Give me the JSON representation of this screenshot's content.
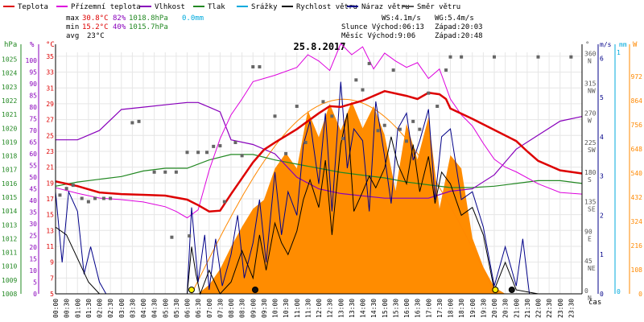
{
  "legend": [
    {
      "name": "Teplota",
      "color": "#dd0000"
    },
    {
      "name": "Přízemní teplota",
      "color": "#dd00dd"
    },
    {
      "name": "Vlhkost",
      "color": "#8800bb"
    },
    {
      "name": "Tlak",
      "color": "#228822"
    },
    {
      "name": "Srážky",
      "color": "#00aadd"
    },
    {
      "name": "Rychlost větru",
      "color": "#000000"
    },
    {
      "name": "Náraz větru",
      "color": "#000088"
    },
    {
      "name": "Směr větru",
      "color": "#555555"
    }
  ],
  "stats": {
    "max_label": "max",
    "max_temp": "30.8°C",
    "max_hum": "82%",
    "max_press": "1018.8hPa",
    "max_rain": "0.0mm",
    "min_label": "min",
    "min_temp": "15.2°C",
    "min_hum": "40%",
    "min_press": "1015.7hPa",
    "avg_label": "avg",
    "avg_temp": "23°C",
    "ws": "WS:4.1m/s",
    "wg": "WG:5.4m/s",
    "sun": "Slunce Východ:06:13",
    "sun_set": "Západ:20:03",
    "moon": "Měsíc Východ:9:06",
    "moon_set": "Západ:20:48"
  },
  "axis_units": {
    "hpa": "hPa",
    "pct": "%",
    "degc": "°C",
    "deg": "°",
    "ms": "m/s",
    "mm": "mm",
    "w": "W",
    "cas": "čas"
  },
  "colors": {
    "temp": "#dd0000",
    "ground": "#dd00dd",
    "hum": "#8800bb",
    "press": "#228822",
    "rain": "#00aadd",
    "wind": "#000000",
    "gust": "#000088",
    "dir": "#666666",
    "solar": "#ff8800",
    "solar_fill": "#ff8c00",
    "grid": "#e6e6e6"
  },
  "chart_data": {
    "type": "line",
    "title": "25.8.2017",
    "x_labels": [
      "00:00",
      "00:30",
      "01:00",
      "01:30",
      "02:00",
      "02:30",
      "03:00",
      "03:30",
      "04:00",
      "04:30",
      "05:00",
      "05:30",
      "06:00",
      "06:30",
      "07:00",
      "07:30",
      "08:00",
      "08:30",
      "09:00",
      "09:30",
      "10:00",
      "10:30",
      "11:00",
      "11:30",
      "12:00",
      "12:30",
      "13:00",
      "13:30",
      "14:00",
      "14:30",
      "15:00",
      "15:30",
      "16:00",
      "16:30",
      "17:00",
      "17:30",
      "18:00",
      "18:30",
      "19:00",
      "19:30",
      "20:00",
      "20:30",
      "21:00",
      "21:30",
      "22:00",
      "22:30",
      "23:00",
      "23:30"
    ],
    "x_axis_label": "čas",
    "axes": {
      "pressure_hPa": {
        "ticks": [
          1008,
          1009,
          1010,
          1011,
          1012,
          1013,
          1014,
          1015,
          1016,
          1017,
          1018,
          1019,
          1020,
          1021,
          1022,
          1023,
          1024,
          1025
        ]
      },
      "humidity_pct": {
        "ticks": [
          0,
          5,
          10,
          15,
          20,
          25,
          30,
          35,
          40,
          45,
          50,
          55,
          60,
          65,
          70,
          75,
          80,
          85,
          90,
          95,
          100
        ]
      },
      "temperature_C": {
        "ticks": [
          5,
          7,
          9,
          11,
          13,
          15,
          17,
          19,
          21,
          23,
          25,
          27,
          29,
          31,
          33,
          35
        ]
      },
      "wind_dir_deg": {
        "ticks": [
          {
            "v": 360,
            "l": "N"
          },
          {
            "v": 315,
            "l": "NW"
          },
          {
            "v": 270,
            "l": "W"
          },
          {
            "v": 225,
            "l": "SW"
          },
          {
            "v": 180,
            "l": "S"
          },
          {
            "v": 135,
            "l": "SE"
          },
          {
            "v": 90,
            "l": "E"
          },
          {
            "v": 45,
            "l": "NE"
          },
          {
            "v": 0,
            "l": "N"
          }
        ]
      },
      "wind_ms": {
        "ticks": [
          0,
          1,
          2,
          3,
          4,
          5,
          6
        ]
      },
      "rain_mm": {
        "ticks": [
          0,
          1
        ]
      },
      "solar_W": {
        "ticks": [
          0,
          108,
          216,
          324,
          432,
          540,
          648,
          756,
          864,
          972
        ]
      }
    },
    "series": [
      {
        "name": "Teplota",
        "unit": "°C",
        "t": [
          0,
          1,
          2,
          3,
          4,
          5,
          6,
          6.5,
          7,
          7.5,
          8,
          8.5,
          9,
          9.5,
          10,
          11,
          12,
          12.5,
          13,
          14,
          15,
          16,
          16.5,
          17,
          17.5,
          17.8,
          18,
          19,
          20,
          21,
          21.5,
          22,
          23,
          24
        ],
        "values": [
          19.2,
          18.6,
          17.8,
          17.6,
          17.5,
          17.4,
          16.9,
          16.2,
          15.4,
          15.5,
          17.6,
          19.6,
          21.6,
          23.2,
          24.1,
          25.8,
          27.8,
          28.7,
          28.6,
          29.4,
          30.6,
          30.0,
          29.6,
          30.4,
          30.2,
          29.6,
          28.4,
          27.1,
          25.7,
          24.3,
          23.0,
          21.8,
          20.6,
          20.2
        ]
      },
      {
        "name": "Přízemní teplota",
        "unit": "°C",
        "t": [
          0,
          1,
          2,
          3,
          4,
          5,
          5.5,
          6,
          6.5,
          7,
          7.5,
          8,
          8.5,
          9,
          10,
          11,
          11.5,
          12,
          12.5,
          13,
          13.5,
          14,
          14.5,
          15,
          15.5,
          16,
          16.5,
          17,
          17.5,
          18,
          18.5,
          19,
          19.5,
          20,
          20.5,
          21,
          22,
          23,
          24
        ],
        "values": [
          18.4,
          17.7,
          17.1,
          16.9,
          16.6,
          16.0,
          15.4,
          14.6,
          15.6,
          20.6,
          24.6,
          27.6,
          29.6,
          31.8,
          32.6,
          33.6,
          35.2,
          34.4,
          33.2,
          36.6,
          35.2,
          36.2,
          33.4,
          35.4,
          34.4,
          33.6,
          34.2,
          32.2,
          33.4,
          29.6,
          27.6,
          26.2,
          24.0,
          22.0,
          21.0,
          20.4,
          18.9,
          17.8,
          17.6
        ]
      },
      {
        "name": "Vlhkost",
        "unit": "%",
        "t": [
          0,
          1,
          2,
          3,
          4,
          5,
          6,
          6.5,
          7,
          7.5,
          8,
          9,
          10,
          11,
          12,
          13,
          14,
          15,
          16,
          17,
          18,
          19,
          20,
          21,
          22,
          23,
          24
        ],
        "values": [
          66,
          66,
          70,
          79,
          80,
          81,
          82,
          82,
          80,
          78,
          66,
          64,
          60,
          50,
          45,
          43,
          42,
          41,
          41,
          41,
          44,
          45,
          51,
          62,
          68,
          74,
          76
        ]
      },
      {
        "name": "Tlak",
        "unit": "hPa",
        "t": [
          0,
          1,
          2,
          3,
          4,
          5,
          6,
          7,
          8,
          9,
          10,
          11,
          12,
          13,
          14,
          15,
          16,
          17,
          18,
          19,
          20,
          21,
          22,
          23,
          24
        ],
        "values": [
          1015.8,
          1016.1,
          1016.3,
          1016.5,
          1016.9,
          1017.1,
          1017.1,
          1017.7,
          1018.1,
          1018.1,
          1017.7,
          1017.4,
          1017.1,
          1016.8,
          1016.6,
          1016.4,
          1016.1,
          1015.9,
          1015.7,
          1015.7,
          1015.8,
          1016.0,
          1016.2,
          1016.2,
          1016.0
        ]
      },
      {
        "name": "Srážky",
        "unit": "mm",
        "t": [
          0,
          24
        ],
        "values": [
          0,
          0
        ]
      },
      {
        "name": "Rychlost větru",
        "unit": "m/s",
        "t": [
          0,
          0.5,
          1,
          1.5,
          2,
          2.5,
          3,
          6,
          6.2,
          6.4,
          6.6,
          7,
          7.5,
          8,
          8.5,
          9,
          9.3,
          9.6,
          10,
          10.3,
          10.6,
          11,
          11.3,
          11.6,
          12,
          12.3,
          12.6,
          13,
          13.3,
          13.6,
          14,
          14.3,
          14.6,
          15,
          15.3,
          15.6,
          16,
          16.3,
          16.6,
          17,
          17.3,
          17.6,
          18,
          18.5,
          19,
          19.5,
          20,
          20.5,
          21,
          22,
          23,
          24
        ],
        "values": [
          1.7,
          1.5,
          0.9,
          0.3,
          0,
          0,
          0,
          0,
          1.2,
          0.5,
          0,
          0.6,
          0,
          0.3,
          1.1,
          0.4,
          1.5,
          0.6,
          1.8,
          1.3,
          1.0,
          1.6,
          2.4,
          2.9,
          2.2,
          3.4,
          1.5,
          3.8,
          4.6,
          2.1,
          2.6,
          3.0,
          2.7,
          3.2,
          4.0,
          3.3,
          2.8,
          3.8,
          2.6,
          3.5,
          2.3,
          3.1,
          2.8,
          2.0,
          2.2,
          1.5,
          0.1,
          0.8,
          0.1,
          0,
          0,
          0
        ]
      },
      {
        "name": "Náraz větru",
        "unit": "m/s",
        "t": [
          0,
          0.3,
          0.6,
          1,
          1.3,
          1.6,
          2,
          2.3,
          3,
          6,
          6.2,
          6.5,
          6.8,
          7,
          7.3,
          7.6,
          8,
          8.3,
          8.6,
          9,
          9.3,
          9.6,
          10,
          10.3,
          10.6,
          11,
          11.3,
          11.6,
          12,
          12.3,
          12.6,
          13,
          13.3,
          13.6,
          14,
          14.3,
          14.6,
          15,
          15.3,
          15.6,
          16,
          16.3,
          16.6,
          17,
          17.3,
          17.6,
          18,
          18.5,
          19,
          19.5,
          20,
          20.5,
          21,
          21.3,
          21.6,
          22,
          23,
          24
        ],
        "values": [
          2.6,
          0.8,
          2.6,
          2.1,
          0.5,
          1.2,
          0.3,
          0,
          0,
          0,
          2.2,
          0.3,
          1.5,
          0.1,
          1.4,
          0.2,
          1.0,
          2.0,
          0.4,
          1.3,
          2.4,
          0.8,
          3.1,
          1.5,
          2.6,
          2.0,
          3.8,
          4.4,
          2.8,
          4.6,
          2.1,
          5.4,
          3.2,
          4.2,
          3.9,
          2.1,
          4.9,
          3.5,
          2.3,
          4.2,
          4.6,
          3.4,
          3.9,
          4.7,
          2.4,
          4.0,
          4.2,
          2.4,
          2.6,
          1.7,
          0.2,
          1.2,
          0.2,
          1.4,
          0,
          0,
          0,
          0
        ]
      },
      {
        "name": "Směr větru",
        "unit": "°",
        "points": [
          [
            0.2,
            150
          ],
          [
            0.5,
            160
          ],
          [
            0.8,
            165
          ],
          [
            1.2,
            145
          ],
          [
            1.5,
            140
          ],
          [
            1.8,
            145
          ],
          [
            2.2,
            145
          ],
          [
            2.5,
            145
          ],
          [
            3.5,
            260
          ],
          [
            3.8,
            262
          ],
          [
            4.5,
            185
          ],
          [
            5,
            185
          ],
          [
            5.5,
            185
          ],
          [
            6,
            215
          ],
          [
            6.5,
            215
          ],
          [
            6.9,
            215
          ],
          [
            5.3,
            86
          ],
          [
            6.1,
            88
          ],
          [
            7.2,
            224
          ],
          [
            7.5,
            225
          ],
          [
            7.7,
            140
          ],
          [
            8.2,
            230
          ],
          [
            8.5,
            210
          ],
          [
            9,
            345
          ],
          [
            9.3,
            345
          ],
          [
            10,
            270
          ],
          [
            10.5,
            213
          ],
          [
            11,
            285
          ],
          [
            11.4,
            230
          ],
          [
            12.2,
            292
          ],
          [
            12.6,
            270
          ],
          [
            13.1,
            236
          ],
          [
            13.7,
            325
          ],
          [
            14,
            310
          ],
          [
            14.3,
            350
          ],
          [
            14.7,
            248
          ],
          [
            15,
            256
          ],
          [
            15.4,
            340
          ],
          [
            15.7,
            250
          ],
          [
            16,
            232
          ],
          [
            16.3,
            262
          ],
          [
            16.6,
            250
          ],
          [
            17,
            305
          ],
          [
            17.4,
            285
          ],
          [
            17.8,
            340
          ],
          [
            18,
            360
          ],
          [
            18.5,
            360
          ],
          [
            20,
            360
          ],
          [
            22,
            360
          ],
          [
            23.5,
            360
          ]
        ]
      },
      {
        "name": "Sluneční záření",
        "unit": "W",
        "t": [
          6.5,
          7.0,
          7.5,
          8.0,
          8.5,
          9.0,
          9.5,
          10.0,
          10.5,
          11.0,
          11.5,
          12.0,
          12.5,
          13.0,
          13.5,
          14.0,
          14.5,
          15.0,
          15.5,
          16.0,
          16.5,
          17.0,
          17.5,
          18.0,
          18.5,
          19.0,
          19.5,
          20.0,
          20.5
        ],
        "values": [
          0,
          40,
          110,
          210,
          300,
          380,
          420,
          560,
          630,
          560,
          820,
          700,
          850,
          730,
          860,
          740,
          840,
          710,
          460,
          760,
          600,
          790,
          380,
          620,
          560,
          250,
          120,
          30,
          0
        ],
        "theoretical_max": 870
      }
    ],
    "markers": [
      {
        "t": 6.2,
        "label": "sunrise"
      },
      {
        "t": 9.1,
        "label": "moonrise"
      },
      {
        "t": 20.05,
        "label": "sunset"
      },
      {
        "t": 20.8,
        "label": "moonset"
      }
    ]
  }
}
